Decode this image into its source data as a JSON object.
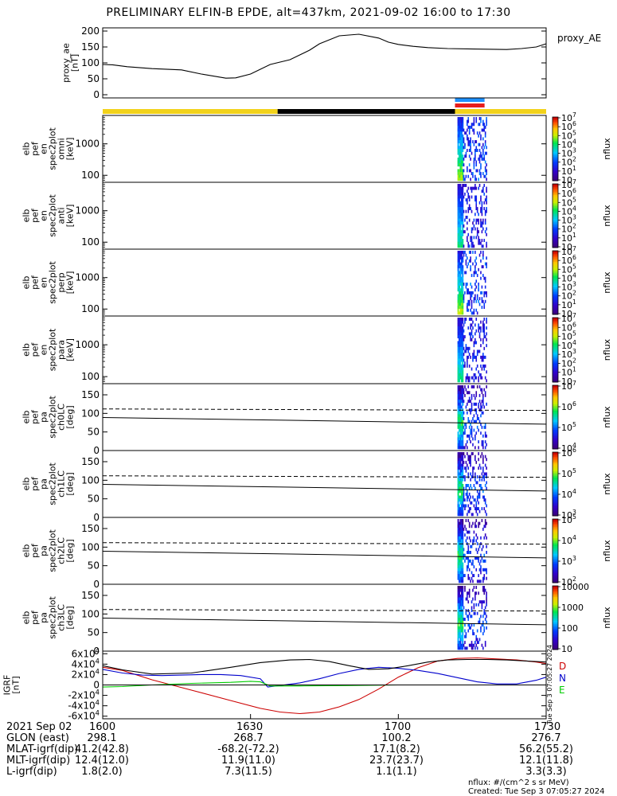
{
  "title": "PRELIMINARY ELFIN-B EPDE, alt=437km, 2021-09-02 16:00 to 17:30",
  "chart_data": {
    "type": "line",
    "time_range": [
      "2021-09-02 16:00",
      "2021-09-02 17:30"
    ],
    "x_unit": "minutes after 16:00",
    "xlim": [
      0,
      90
    ],
    "panels": [
      {
        "id": "proxy_ae",
        "type": "line",
        "ylabel": "proxy_ae\n[nT]",
        "right_label": "proxy_AE",
        "ylim": [
          -10,
          210
        ],
        "yticks": [
          "0",
          "50",
          "100",
          "150",
          "200"
        ],
        "series": [
          {
            "x": [
              0,
              2,
              5,
              10,
              16,
              20,
              25,
              27,
              30,
              34,
              38,
              42,
              44,
              48,
              52,
              56,
              58,
              60,
              63,
              66,
              70,
              74,
              78,
              82,
              85,
              88,
              90
            ],
            "y": [
              95,
              94,
              88,
              82,
              78,
              65,
              52,
              53,
              65,
              95,
              110,
              140,
              160,
              185,
              190,
              178,
              165,
              158,
              152,
              148,
              145,
              144,
              143,
              142,
              145,
              150,
              160
            ]
          }
        ]
      },
      {
        "id": "omni",
        "type": "heatmap",
        "ylabel": "elb\npef\nen\nspec2plot\nomni\n[keV]",
        "yscale": "log",
        "ylim": [
          60,
          8000
        ],
        "yticks": [
          "100",
          "1000"
        ],
        "zlabel": "nflux",
        "zticks": [
          "10",
          "10^1",
          "10^2",
          "10^3",
          "10^4",
          "10^5",
          "10^6",
          "10^7"
        ],
        "data_x_range": [
          72,
          78
        ]
      },
      {
        "id": "anti",
        "type": "heatmap",
        "ylabel": "elb\npef\nen\nspec2plot\nanti\n[keV]",
        "yscale": "log",
        "ylim": [
          60,
          8000
        ],
        "yticks": [
          "100",
          "1000"
        ],
        "zlabel": "nflux",
        "zticks": [
          "10",
          "10^1",
          "10^2",
          "10^3",
          "10^4",
          "10^5",
          "10^6",
          "10^7"
        ],
        "data_x_range": [
          72,
          78
        ]
      },
      {
        "id": "perp",
        "type": "heatmap",
        "ylabel": "elb\npef\nen\nspec2plot\nperp\n[keV]",
        "yscale": "log",
        "ylim": [
          60,
          8000
        ],
        "yticks": [
          "100",
          "1000"
        ],
        "zlabel": "nflux",
        "zticks": [
          "10",
          "10^1",
          "10^2",
          "10^3",
          "10^4",
          "10^5",
          "10^6",
          "10^7"
        ],
        "data_x_range": [
          72,
          78
        ]
      },
      {
        "id": "para",
        "type": "heatmap",
        "ylabel": "elb\npef\nen\nspec2plot\npara\n[keV]",
        "yscale": "log",
        "ylim": [
          60,
          8000
        ],
        "yticks": [
          "100",
          "1000"
        ],
        "zlabel": "nflux",
        "zticks": [
          "10",
          "10^1",
          "10^2",
          "10^3",
          "10^4",
          "10^5",
          "10^6",
          "10^7"
        ],
        "data_x_range": [
          72,
          78
        ]
      },
      {
        "id": "ch0LC",
        "type": "heatmap",
        "ylabel": "elb\npef\npa\nspec2plot\nch0LC\n[deg]",
        "ylim": [
          0,
          180
        ],
        "yticks": [
          "0",
          "50",
          "100",
          "150"
        ],
        "zlabel": "nflux",
        "zticks": [
          "10^4",
          "10^5",
          "10^6",
          "10^7"
        ],
        "solid_line": [
          [
            0,
            89
          ],
          [
            90,
            71
          ]
        ],
        "dashed_line": [
          [
            0,
            112
          ],
          [
            90,
            108
          ]
        ]
      },
      {
        "id": "ch1LC",
        "type": "heatmap",
        "ylabel": "elb\npef\npa\nspec2plot\nch1LC\n[deg]",
        "ylim": [
          0,
          180
        ],
        "yticks": [
          "0",
          "50",
          "100",
          "150"
        ],
        "zlabel": "nflux",
        "zticks": [
          "10^3",
          "10^4",
          "10^5",
          "10^6"
        ],
        "solid_line": [
          [
            0,
            89
          ],
          [
            90,
            71
          ]
        ],
        "dashed_line": [
          [
            0,
            112
          ],
          [
            90,
            108
          ]
        ]
      },
      {
        "id": "ch2LC",
        "type": "heatmap",
        "ylabel": "elb\npef\npa\nspec2plot\nch2LC\n[deg]",
        "ylim": [
          0,
          180
        ],
        "yticks": [
          "0",
          "50",
          "100",
          "150"
        ],
        "zlabel": "nflux",
        "zticks": [
          "10^2",
          "10^3",
          "10^4",
          "10^5"
        ],
        "solid_line": [
          [
            0,
            89
          ],
          [
            90,
            71
          ]
        ],
        "dashed_line": [
          [
            0,
            112
          ],
          [
            90,
            108
          ]
        ]
      },
      {
        "id": "ch3LC",
        "type": "heatmap",
        "ylabel": "elb\npef\npa\nspec2plot\nch3LC\n[deg]",
        "ylim": [
          0,
          180
        ],
        "yticks": [
          "0",
          "50",
          "100",
          "150"
        ],
        "zlabel": "nflux",
        "zticks": [
          "10",
          "100",
          "1000",
          "10000"
        ],
        "solid_line": [
          [
            0,
            89
          ],
          [
            90,
            71
          ]
        ],
        "dashed_line": [
          [
            0,
            112
          ],
          [
            90,
            108
          ]
        ]
      },
      {
        "id": "igrf",
        "type": "line",
        "ylabel": "IGRF\n[nT]",
        "ylim": [
          -65000,
          65000
        ],
        "yticks": [
          "-6x10^4",
          "-4x10^4",
          "-2x10^4",
          "0",
          "2x10^4",
          "4x10^4",
          "6x10^4"
        ],
        "legend": [
          "D",
          "N",
          "E"
        ],
        "series": [
          {
            "name": "D",
            "color": "#cc0000",
            "x": [
              0,
              4,
              10,
              18,
              26,
              32,
              36,
              40,
              44,
              48,
              52,
              56,
              60,
              64,
              68,
              72,
              76,
              80,
              84,
              88,
              90
            ],
            "y": [
              34000,
              28000,
              10000,
              -10000,
              -30000,
              -45000,
              -52000,
              -55000,
              -52000,
              -42000,
              -28000,
              -8000,
              15000,
              33000,
              46000,
              51000,
              52000,
              50000,
              48000,
              44000,
              41000
            ]
          },
          {
            "name": "N",
            "color": "#0000cc",
            "x": [
              0,
              4,
              8,
              12,
              16,
              20,
              24,
              28,
              32,
              33.5,
              36,
              40,
              44,
              48,
              52,
              56,
              60,
              64,
              68,
              72,
              76,
              80,
              84,
              88,
              90
            ],
            "y": [
              30000,
              23000,
              19000,
              18000,
              19000,
              20000,
              20000,
              18000,
              12000,
              -4000,
              -1000,
              4000,
              12000,
              22000,
              30000,
              34000,
              32000,
              28000,
              22000,
              14000,
              6000,
              2000,
              2000,
              9000,
              15000
            ]
          },
          {
            "name": "E",
            "color": "#00cc00",
            "x": [
              0,
              4,
              10,
              18,
              26,
              30,
              32,
              34,
              40,
              50,
              60,
              70,
              80,
              90
            ],
            "y": [
              -4000,
              -3000,
              0,
              3000,
              5000,
              7000,
              6000,
              -2000,
              -2000,
              -1000,
              0,
              0,
              0,
              0
            ]
          },
          {
            "name": "F",
            "color": "#000000",
            "x": [
              0,
              4,
              10,
              18,
              26,
              32,
              38,
              42,
              46,
              50,
              54,
              58,
              62,
              66,
              70,
              74,
              78,
              82,
              86,
              90
            ],
            "y": [
              37000,
              29000,
              21000,
              23000,
              34000,
              43000,
              48000,
              49000,
              45000,
              37000,
              30000,
              31000,
              37000,
              44000,
              48000,
              49000,
              49000,
              48000,
              46000,
              44000
            ]
          }
        ]
      }
    ],
    "orbit_bar": [
      {
        "from": 0,
        "to": 35.5,
        "color": "#f2d21b"
      },
      {
        "from": 35.5,
        "to": 71.5,
        "color": "#000000"
      },
      {
        "from": 71.5,
        "to": 90,
        "color": "#f2d21b"
      }
    ],
    "science_zone_bars": [
      {
        "from": 71.5,
        "to": 77.5,
        "color": "#1e90ff"
      },
      {
        "from": 71.5,
        "to": 77.5,
        "color": "#e61c1c"
      }
    ]
  },
  "ephemeris": {
    "header": "2021 Sep 02",
    "times": [
      "1600",
      "1630",
      "1700",
      "1730"
    ],
    "rows": [
      {
        "label": "GLON (east)",
        "values": [
          "298.1",
          "268.7",
          "100.2",
          "276.7"
        ]
      },
      {
        "label": "MLAT-igrf(dip)",
        "values": [
          "41.2(42.8)",
          "-68.2(-72.2)",
          "17.1(8.2)",
          "56.2(55.2)"
        ]
      },
      {
        "label": "MLT-igrf(dip)",
        "values": [
          "12.4(12.0)",
          "11.9(11.0)",
          "23.7(23.7)",
          "12.1(11.8)"
        ]
      },
      {
        "label": "L-igrf(dip)",
        "values": [
          "1.8(2.0)",
          "7.3(11.5)",
          "1.1(1.1)",
          "3.3(3.3)"
        ]
      }
    ]
  },
  "footer": {
    "units": "nflux: #/(cm^2 s sr MeV)",
    "created": "Created: Tue Sep  3 07:05:27 2024",
    "side_stamp": "Tue Sep  3 07:05:27 2024"
  }
}
